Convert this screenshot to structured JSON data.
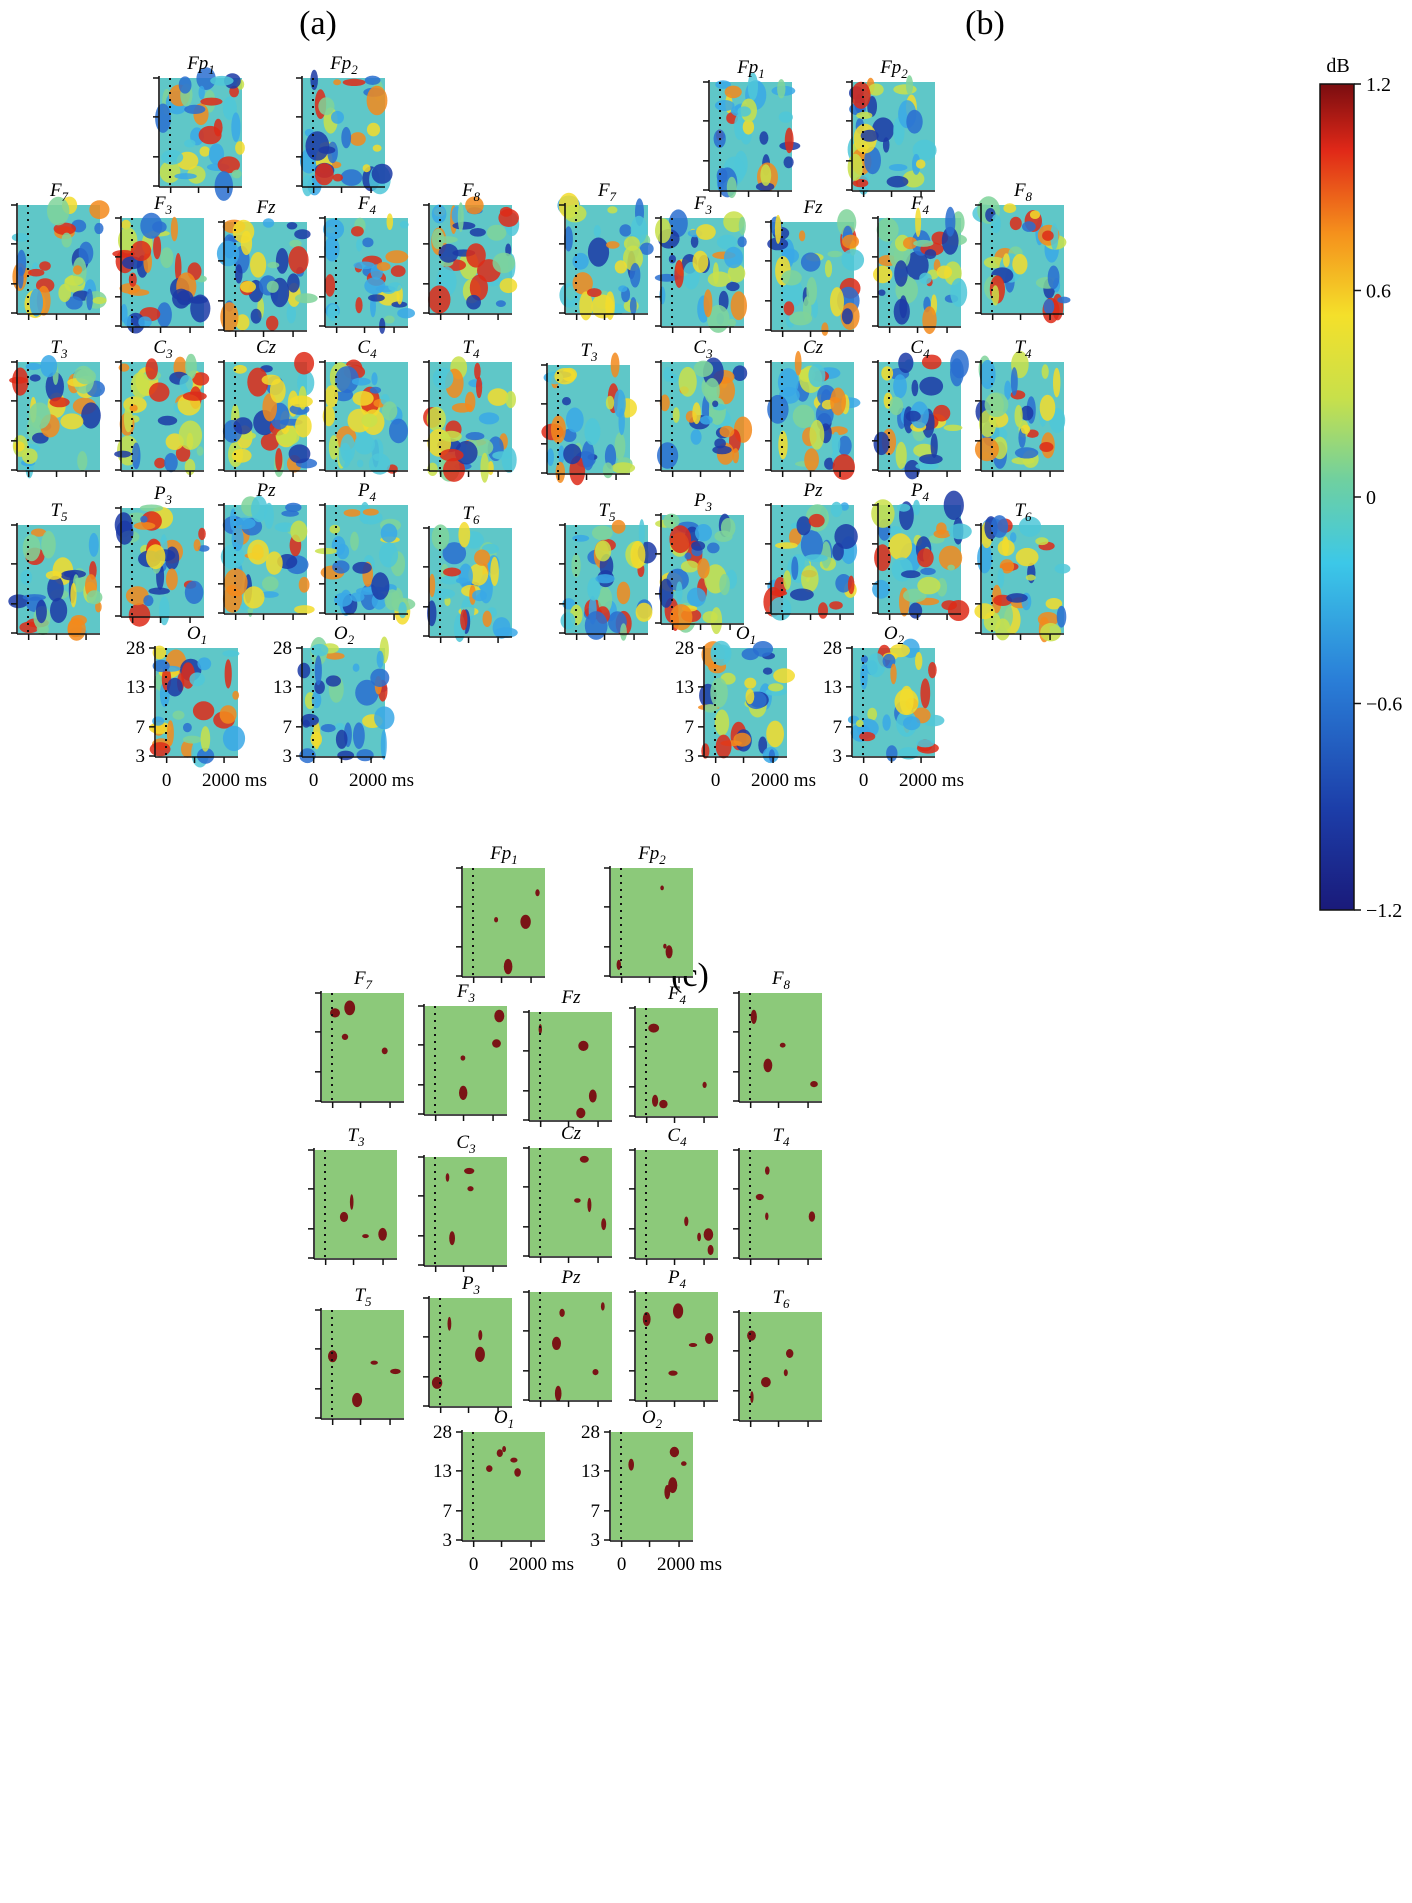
{
  "panels": [
    {
      "id": "a",
      "label": "(a)",
      "kind": "tf"
    },
    {
      "id": "b",
      "label": "(b)",
      "kind": "tf"
    },
    {
      "id": "c",
      "label": "(c)",
      "kind": "sig"
    }
  ],
  "chart_data": [
    {
      "type": "heatmap",
      "panel": "(a)",
      "electrodes": [
        {
          "name": "Fp",
          "sub": "1"
        },
        {
          "name": "Fp",
          "sub": "2"
        },
        {
          "name": "F",
          "sub": "7"
        },
        {
          "name": "F",
          "sub": "3"
        },
        {
          "name": "Fz",
          "sub": ""
        },
        {
          "name": "F",
          "sub": "4"
        },
        {
          "name": "F",
          "sub": "8"
        },
        {
          "name": "T",
          "sub": "3"
        },
        {
          "name": "C",
          "sub": "3"
        },
        {
          "name": "Cz",
          "sub": ""
        },
        {
          "name": "C",
          "sub": "4"
        },
        {
          "name": "T",
          "sub": "4"
        },
        {
          "name": "T",
          "sub": "5"
        },
        {
          "name": "P",
          "sub": "3"
        },
        {
          "name": "Pz",
          "sub": ""
        },
        {
          "name": "P",
          "sub": "4"
        },
        {
          "name": "T",
          "sub": "6"
        },
        {
          "name": "O",
          "sub": "1"
        },
        {
          "name": "O",
          "sub": "2"
        }
      ],
      "y_ticks": [
        "28",
        "13",
        "7",
        "3"
      ],
      "x_ticks": [
        "0",
        "2000 ms"
      ]
    },
    {
      "type": "heatmap",
      "panel": "(b)",
      "electrodes": [
        {
          "name": "Fp",
          "sub": "1"
        },
        {
          "name": "Fp",
          "sub": "2"
        },
        {
          "name": "F",
          "sub": "7"
        },
        {
          "name": "F",
          "sub": "3"
        },
        {
          "name": "Fz",
          "sub": ""
        },
        {
          "name": "F",
          "sub": "4"
        },
        {
          "name": "F",
          "sub": "8"
        },
        {
          "name": "T",
          "sub": "3"
        },
        {
          "name": "C",
          "sub": "3"
        },
        {
          "name": "Cz",
          "sub": ""
        },
        {
          "name": "C",
          "sub": "4"
        },
        {
          "name": "T",
          "sub": "4"
        },
        {
          "name": "T",
          "sub": "5"
        },
        {
          "name": "P",
          "sub": "3"
        },
        {
          "name": "Pz",
          "sub": ""
        },
        {
          "name": "P",
          "sub": "4"
        },
        {
          "name": "T",
          "sub": "6"
        },
        {
          "name": "O",
          "sub": "1"
        },
        {
          "name": "O",
          "sub": "2"
        }
      ],
      "y_ticks": [
        "28",
        "13",
        "7",
        "3"
      ],
      "x_ticks": [
        "0",
        "2000 ms"
      ]
    },
    {
      "type": "heatmap",
      "panel": "(c)",
      "electrodes": [
        {
          "name": "Fp",
          "sub": "1"
        },
        {
          "name": "Fp",
          "sub": "2"
        },
        {
          "name": "F",
          "sub": "7"
        },
        {
          "name": "F",
          "sub": "3"
        },
        {
          "name": "Fz",
          "sub": ""
        },
        {
          "name": "F",
          "sub": "4"
        },
        {
          "name": "F",
          "sub": "8"
        },
        {
          "name": "T",
          "sub": "3"
        },
        {
          "name": "C",
          "sub": "3"
        },
        {
          "name": "Cz",
          "sub": ""
        },
        {
          "name": "C",
          "sub": "4"
        },
        {
          "name": "T",
          "sub": "4"
        },
        {
          "name": "T",
          "sub": "5"
        },
        {
          "name": "P",
          "sub": "3"
        },
        {
          "name": "Pz",
          "sub": ""
        },
        {
          "name": "P",
          "sub": "4"
        },
        {
          "name": "T",
          "sub": "6"
        },
        {
          "name": "O",
          "sub": "1"
        },
        {
          "name": "O",
          "sub": "2"
        }
      ],
      "y_ticks": [
        "28",
        "13",
        "7",
        "3"
      ],
      "x_ticks": [
        "0",
        "2000 ms"
      ]
    }
  ],
  "colorbar": {
    "unit": "dB",
    "range": [
      -1.2,
      1.2
    ],
    "ticks": [
      "1.2",
      "0.6",
      "0",
      "−0.6",
      "−1.2"
    ]
  },
  "colors": {
    "significant": "#7a1416",
    "nonsignificant": "#8cc97a"
  }
}
